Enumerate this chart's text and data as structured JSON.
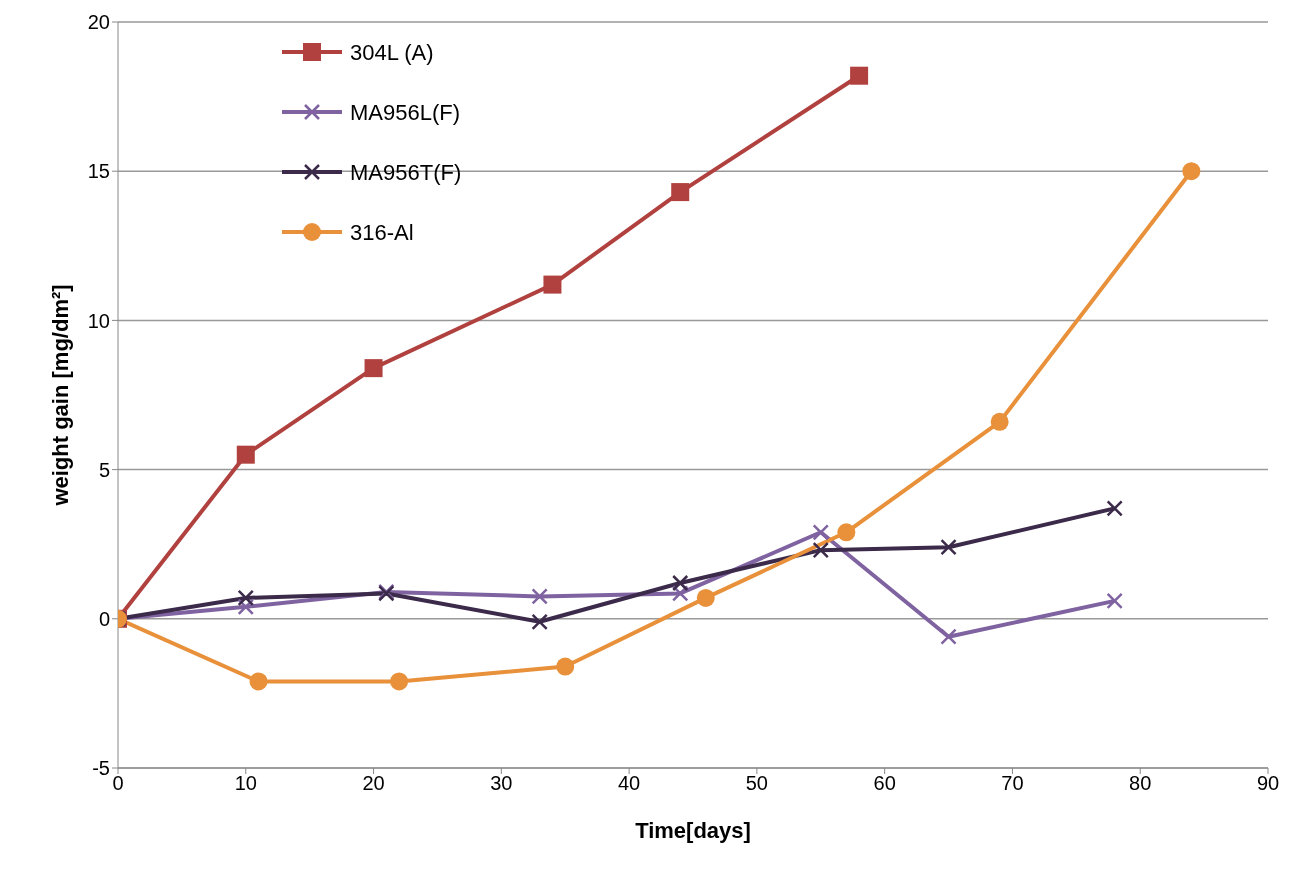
{
  "chart_data": {
    "type": "line",
    "xlabel": "Time[days]",
    "ylabel": "weight gain [mg/dm²]",
    "xlim": [
      0,
      90
    ],
    "xticks": [
      0,
      10,
      20,
      30,
      40,
      50,
      60,
      70,
      80,
      90
    ],
    "ylim": [
      -5,
      20
    ],
    "yticks": [
      -5,
      0,
      5,
      10,
      15,
      20
    ],
    "grid": "y",
    "legend": "top left",
    "line_style": "solid",
    "series": [
      {
        "name": "304L (A)",
        "color": "#b0413e",
        "marker": "square",
        "x": [
          0,
          10,
          20,
          34,
          44,
          58
        ],
        "values": [
          0,
          5.5,
          8.4,
          11.2,
          14.3,
          18.2
        ]
      },
      {
        "name": "MA956L(F)",
        "color": "#7f62a0",
        "marker": "cross",
        "x": [
          0,
          10,
          21,
          33,
          44,
          55,
          65,
          78
        ],
        "values": [
          0,
          0.4,
          0.9,
          0.75,
          0.85,
          2.9,
          -0.6,
          0.6
        ]
      },
      {
        "name": "MA956T(F)",
        "color": "#3b2a4a",
        "marker": "cross",
        "x": [
          0,
          10,
          21,
          33,
          44,
          55,
          65,
          78
        ],
        "values": [
          0,
          0.7,
          0.85,
          -0.1,
          1.2,
          2.3,
          2.4,
          3.7
        ]
      },
      {
        "name": "316-Al",
        "color": "#e8903a",
        "marker": "circle",
        "x": [
          0,
          11,
          22,
          35,
          46,
          57,
          69,
          84
        ],
        "values": [
          0,
          -2.1,
          -2.1,
          -1.6,
          0.7,
          2.9,
          6.6,
          15
        ]
      }
    ]
  }
}
